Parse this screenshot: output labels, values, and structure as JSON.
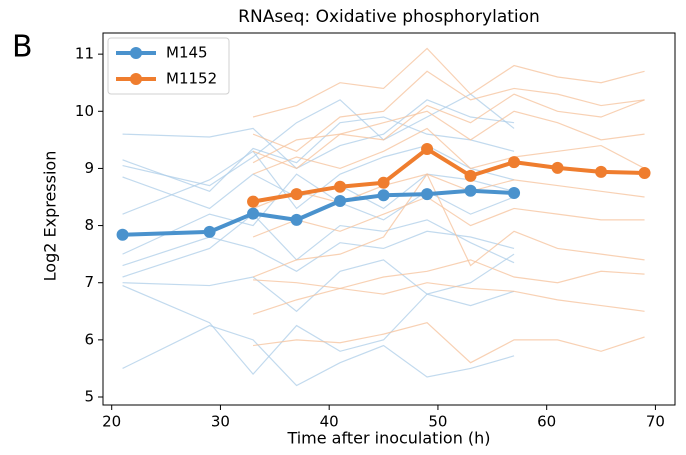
{
  "chart_data": {
    "type": "line",
    "panel_label": "B",
    "title": "RNAseq: Oxidative phosphorylation",
    "x_label": "Time after inoculation (h)",
    "y_label": "Log2 Expression",
    "xlim": [
      19.2,
      71.8
    ],
    "xticks": [
      20,
      30,
      40,
      50,
      60,
      70
    ],
    "ylim": [
      4.86,
      11.37
    ],
    "yticks": [
      5,
      6,
      7,
      8,
      9,
      10,
      11
    ],
    "legend": "upper left",
    "series": [
      {
        "name": "M145",
        "color": "#4a92cd",
        "x": [
          21,
          29,
          33,
          37,
          41,
          45,
          49,
          53,
          57
        ],
        "values": [
          7.84,
          7.89,
          8.21,
          8.1,
          8.43,
          8.53,
          8.55,
          8.61,
          8.57
        ]
      },
      {
        "name": "M1152",
        "color": "#ef7d2e",
        "x": [
          33,
          37,
          41,
          45,
          49,
          53,
          57,
          61,
          65,
          69
        ],
        "values": [
          8.42,
          8.55,
          8.68,
          8.75,
          9.34,
          8.87,
          9.11,
          9.01,
          8.94,
          8.92
        ]
      }
    ],
    "background": [
      {
        "color": "#aecde8",
        "x": [
          21,
          29,
          33,
          37,
          41,
          45,
          49,
          53,
          57
        ],
        "values": [
          9.6,
          9.55,
          9.7,
          9.0,
          9.4,
          9.6,
          10.2,
          9.9,
          9.8
        ]
      },
      {
        "color": "#aecde8",
        "x": [
          21,
          29,
          33,
          37,
          41,
          45,
          49,
          53,
          57
        ],
        "values": [
          9.15,
          8.6,
          9.35,
          9.1,
          9.8,
          9.9,
          9.6,
          9.5,
          9.3
        ]
      },
      {
        "color": "#aecde8",
        "x": [
          21,
          29,
          33,
          37,
          41,
          45,
          49,
          53,
          57
        ],
        "values": [
          8.85,
          8.3,
          8.9,
          8.5,
          8.7,
          8.3,
          8.9,
          8.8,
          8.6
        ]
      },
      {
        "color": "#aecde8",
        "x": [
          21,
          29,
          33,
          37,
          41,
          45,
          49,
          53,
          57
        ],
        "values": [
          7.5,
          8.2,
          8.0,
          8.9,
          8.4,
          8.1,
          8.6,
          8.2,
          8.5
        ]
      },
      {
        "color": "#aecde8",
        "x": [
          21,
          29,
          33,
          37,
          41,
          45,
          49,
          53,
          57
        ],
        "values": [
          7.3,
          7.8,
          7.6,
          7.2,
          7.7,
          7.6,
          7.9,
          7.8,
          7.6
        ]
      },
      {
        "color": "#aecde8",
        "x": [
          21,
          29,
          33,
          37,
          41,
          45,
          49,
          53,
          57
        ],
        "values": [
          7.0,
          6.95,
          7.1,
          6.5,
          7.2,
          7.4,
          6.8,
          7.0,
          7.5
        ]
      },
      {
        "color": "#aecde8",
        "x": [
          21,
          29,
          33,
          37,
          41,
          45,
          49,
          53,
          57
        ],
        "values": [
          6.95,
          6.3,
          5.4,
          6.25,
          5.8,
          6.0,
          6.8,
          6.6,
          6.85
        ]
      },
      {
        "color": "#aecde8",
        "x": [
          21,
          29,
          33,
          37,
          41,
          45,
          49,
          53,
          57
        ],
        "values": [
          5.5,
          6.25,
          6.0,
          5.2,
          5.6,
          5.9,
          5.35,
          5.5,
          5.72
        ]
      },
      {
        "color": "#aecde8",
        "x": [
          21,
          29,
          33,
          37,
          41,
          45,
          49,
          53,
          57
        ],
        "values": [
          9.05,
          8.7,
          9.2,
          9.8,
          10.2,
          9.5,
          9.9,
          10.3,
          9.7
        ]
      },
      {
        "color": "#aecde8",
        "x": [
          21,
          29,
          33,
          37,
          41,
          45,
          49,
          53,
          57
        ],
        "values": [
          8.2,
          8.8,
          9.3,
          8.3,
          8.9,
          9.2,
          9.4,
          9.0,
          8.8
        ]
      },
      {
        "color": "#aecde8",
        "x": [
          21,
          29,
          33,
          37,
          41,
          45,
          49,
          53,
          57
        ],
        "values": [
          7.1,
          7.6,
          8.2,
          7.4,
          8.0,
          7.9,
          8.1,
          7.7,
          7.35
        ]
      },
      {
        "color": "#f5c29b",
        "x": [
          33,
          37,
          41,
          45,
          49,
          53,
          57,
          61,
          65,
          69
        ],
        "values": [
          9.9,
          10.1,
          10.5,
          10.4,
          11.1,
          10.3,
          10.8,
          10.6,
          10.5,
          10.7
        ]
      },
      {
        "color": "#f5c29b",
        "x": [
          33,
          37,
          41,
          45,
          49,
          53,
          57,
          61,
          65,
          69
        ],
        "values": [
          9.6,
          9.3,
          9.9,
          10.0,
          10.7,
          10.2,
          10.4,
          10.3,
          10.1,
          10.2
        ]
      },
      {
        "color": "#f5c29b",
        "x": [
          33,
          37,
          41,
          45,
          49,
          53,
          57,
          61,
          65,
          69
        ],
        "values": [
          9.1,
          9.5,
          9.6,
          9.8,
          10.0,
          9.5,
          10.0,
          9.8,
          9.5,
          9.6
        ]
      },
      {
        "color": "#f5c29b",
        "x": [
          33,
          37,
          41,
          45,
          49,
          53,
          57,
          61,
          65,
          69
        ],
        "values": [
          8.9,
          9.2,
          9.0,
          9.3,
          9.7,
          9.0,
          9.2,
          9.3,
          9.4,
          9.0
        ]
      },
      {
        "color": "#f5c29b",
        "x": [
          33,
          37,
          41,
          45,
          49,
          53,
          57,
          61,
          65,
          69
        ],
        "values": [
          8.3,
          8.6,
          8.4,
          8.7,
          8.9,
          8.6,
          8.8,
          8.7,
          8.6,
          8.5
        ]
      },
      {
        "color": "#f5c29b",
        "x": [
          33,
          37,
          41,
          45,
          49,
          53,
          57,
          61,
          65,
          69
        ],
        "values": [
          7.8,
          8.1,
          7.9,
          8.2,
          8.5,
          8.0,
          8.3,
          8.2,
          8.1,
          8.1
        ]
      },
      {
        "color": "#f5c29b",
        "x": [
          33,
          37,
          41,
          45,
          49,
          53,
          57,
          61,
          65,
          69
        ],
        "values": [
          7.1,
          7.4,
          7.5,
          7.8,
          8.9,
          7.3,
          7.9,
          7.6,
          7.5,
          7.4
        ]
      },
      {
        "color": "#f5c29b",
        "x": [
          33,
          37,
          41,
          45,
          49,
          53,
          57,
          61,
          65,
          69
        ],
        "values": [
          7.05,
          7.0,
          6.9,
          7.1,
          7.2,
          7.4,
          7.1,
          7.0,
          7.2,
          7.15
        ]
      },
      {
        "color": "#f5c29b",
        "x": [
          33,
          37,
          41,
          45,
          49,
          53,
          57,
          61,
          65,
          69
        ],
        "values": [
          6.45,
          6.7,
          6.9,
          6.8,
          7.0,
          6.9,
          6.85,
          6.7,
          6.6,
          6.5
        ]
      },
      {
        "color": "#f5c29b",
        "x": [
          33,
          37,
          41,
          45,
          49,
          53,
          57,
          61,
          65,
          69
        ],
        "values": [
          5.9,
          6.0,
          5.95,
          6.1,
          6.3,
          5.6,
          6.0,
          6.0,
          5.8,
          6.05
        ]
      },
      {
        "color": "#f5c29b",
        "x": [
          33,
          37,
          41,
          45,
          49,
          53,
          57,
          61,
          65,
          69
        ],
        "values": [
          9.3,
          9.0,
          9.6,
          9.5,
          10.1,
          9.8,
          10.3,
          10.0,
          9.9,
          10.2
        ]
      }
    ]
  }
}
